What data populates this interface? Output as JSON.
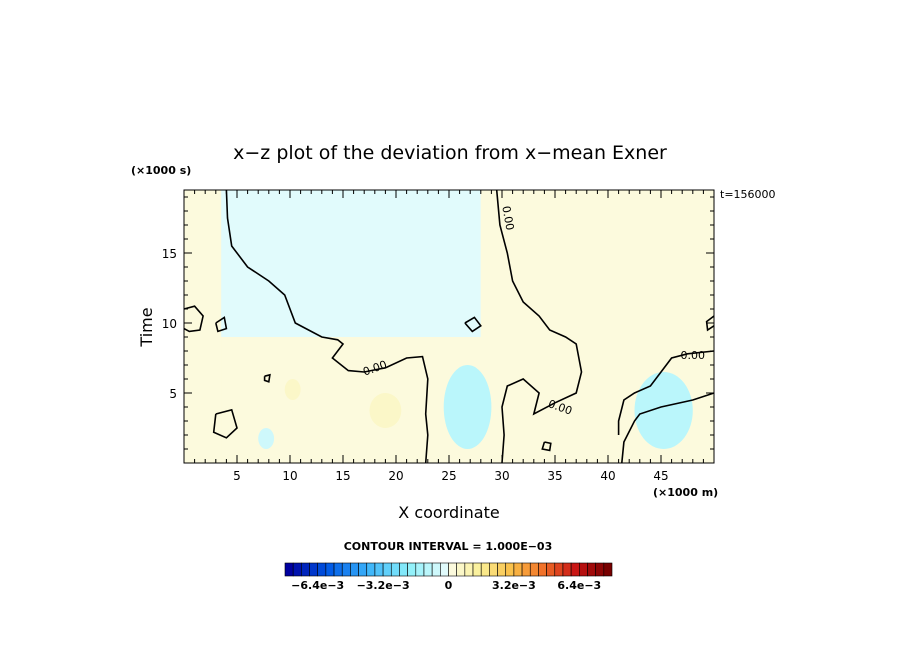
{
  "chart_data": {
    "type": "heatmap",
    "title": "x−z plot of the deviation from x−mean Exner",
    "xlabel": "X coordinate",
    "ylabel": "Time",
    "x_unit": "(×1000 m)",
    "y_unit": "(×1000 s)",
    "time_label": "t=156000",
    "xlim": [
      0,
      50
    ],
    "ylim": [
      0,
      19.5
    ],
    "x_ticks": [
      5,
      10,
      15,
      20,
      25,
      30,
      35,
      40,
      45
    ],
    "y_ticks": [
      5,
      10,
      15
    ],
    "contour_level_labels": [
      "0.00",
      "0.00",
      "0.00",
      "0.00"
    ],
    "contour_interval_text": "CONTOUR INTERVAL = 1.000E−03",
    "colorbar": {
      "min": -0.008,
      "max": 0.008,
      "tick_values": [
        -0.0064,
        -0.0032,
        0,
        0.0032,
        0.0064
      ],
      "tick_labels": [
        "−6.4e−3",
        "−3.2e−3",
        "0",
        "3.2e−3",
        "6.4e−3"
      ]
    },
    "regions": [
      {
        "sign": "negative",
        "x_range": [
          3.5,
          28
        ],
        "y_range": [
          9,
          19.5
        ],
        "level": -0.0002
      },
      {
        "sign": "negative",
        "x_range": [
          24.5,
          29
        ],
        "y_range": [
          1,
          7
        ],
        "level": -0.0012
      },
      {
        "sign": "negative",
        "x_range": [
          42.5,
          48
        ],
        "y_range": [
          1,
          6.5
        ],
        "level": -0.0012
      },
      {
        "sign": "negative",
        "x_range": [
          7,
          8.5
        ],
        "y_range": [
          1,
          2.5
        ],
        "level": -0.0006
      },
      {
        "sign": "positive",
        "x_range": [
          0,
          3.5
        ],
        "y_range": [
          0,
          19.5
        ],
        "level": 0.0002
      },
      {
        "sign": "positive",
        "x_range": [
          28,
          50
        ],
        "y_range": [
          9,
          19.5
        ],
        "level": 0.0002
      },
      {
        "sign": "positive",
        "x_range": [
          17.5,
          20.5
        ],
        "y_range": [
          2.5,
          5
        ],
        "level": 0.0006
      },
      {
        "sign": "positive",
        "x_range": [
          9.5,
          11
        ],
        "y_range": [
          4.5,
          6
        ],
        "level": 0.0006
      }
    ],
    "contours": [
      {
        "name": "zero-contour-left",
        "points": [
          [
            4,
            19.5
          ],
          [
            4.1,
            17.5
          ],
          [
            4.5,
            15.5
          ],
          [
            6,
            14
          ],
          [
            8,
            13
          ],
          [
            9.5,
            12
          ],
          [
            10.5,
            10
          ],
          [
            13,
            9
          ],
          [
            14.5,
            8.8
          ],
          [
            15,
            8.5
          ],
          [
            14,
            7.5
          ],
          [
            15.5,
            6.6
          ],
          [
            17,
            6.5
          ],
          [
            19,
            6.8
          ],
          [
            21,
            7.5
          ],
          [
            22.5,
            7.6
          ],
          [
            23,
            6
          ],
          [
            22.8,
            3.5
          ],
          [
            23,
            2
          ],
          [
            22.8,
            0
          ]
        ]
      },
      {
        "name": "zero-contour-middle",
        "points": [
          [
            29.5,
            19.5
          ],
          [
            29.8,
            17
          ],
          [
            30.5,
            15
          ],
          [
            31,
            13
          ],
          [
            32,
            11.5
          ],
          [
            33.5,
            10.5
          ],
          [
            34.5,
            9.5
          ],
          [
            36,
            9
          ],
          [
            37,
            8.5
          ],
          [
            37.5,
            6.5
          ],
          [
            37,
            5
          ],
          [
            35,
            4.3
          ],
          [
            33,
            3.5
          ],
          [
            33.5,
            5
          ],
          [
            32,
            6
          ],
          [
            30.5,
            5.5
          ],
          [
            30,
            4
          ],
          [
            30.2,
            2
          ],
          [
            30,
            0
          ]
        ]
      },
      {
        "name": "zero-contour-right",
        "points": [
          [
            50,
            5
          ],
          [
            48,
            4.5
          ],
          [
            45,
            4
          ],
          [
            43,
            3.5
          ],
          [
            42.5,
            3
          ],
          [
            41.5,
            1.5
          ],
          [
            41.3,
            0
          ]
        ]
      },
      {
        "name": "zero-contour-right-upper",
        "points": [
          [
            50,
            8
          ],
          [
            47.5,
            7.8
          ],
          [
            46,
            7.5
          ],
          [
            45,
            6.5
          ],
          [
            44,
            5.5
          ],
          [
            42.5,
            5
          ],
          [
            41.5,
            4.5
          ],
          [
            41,
            3
          ],
          [
            41,
            2
          ]
        ]
      },
      {
        "name": "closed-contour-a",
        "points": [
          [
            3,
            3.5
          ],
          [
            4.5,
            3.8
          ],
          [
            5,
            2.5
          ],
          [
            4,
            1.8
          ],
          [
            2.8,
            2.2
          ],
          [
            3,
            3.5
          ]
        ]
      },
      {
        "name": "closed-contour-b",
        "points": [
          [
            3,
            10
          ],
          [
            3.8,
            10.4
          ],
          [
            4,
            9.6
          ],
          [
            3.2,
            9.4
          ],
          [
            3,
            10
          ]
        ]
      },
      {
        "name": "closed-contour-c",
        "points": [
          [
            26.5,
            10
          ],
          [
            27.4,
            10.4
          ],
          [
            28,
            9.8
          ],
          [
            27.2,
            9.4
          ],
          [
            26.5,
            10
          ]
        ]
      },
      {
        "name": "closed-contour-d",
        "points": [
          [
            34,
            1.5
          ],
          [
            34.6,
            1.4
          ],
          [
            34.5,
            0.9
          ],
          [
            33.8,
            1
          ],
          [
            34,
            1.5
          ]
        ]
      },
      {
        "name": "closed-contour-e",
        "points": [
          [
            7.6,
            6.2
          ],
          [
            8.1,
            6.3
          ],
          [
            8.0,
            5.8
          ],
          [
            7.6,
            5.9
          ],
          [
            7.6,
            6.2
          ]
        ]
      },
      {
        "name": "edge-contour-left",
        "points": [
          [
            0,
            11
          ],
          [
            1,
            11.2
          ],
          [
            1.8,
            10.5
          ],
          [
            1.5,
            9.5
          ],
          [
            0.5,
            9.4
          ],
          [
            0,
            9.6
          ]
        ]
      },
      {
        "name": "edge-contour-right",
        "points": [
          [
            50,
            10.5
          ],
          [
            49.3,
            10.1
          ],
          [
            49.4,
            9.5
          ],
          [
            50,
            9.8
          ]
        ]
      }
    ],
    "contour_label_positions": [
      {
        "x": 30.6,
        "y": 17.5,
        "angle": 80
      },
      {
        "x": 18,
        "y": 6.8,
        "angle": -20
      },
      {
        "x": 35.5,
        "y": 4,
        "angle": 20
      },
      {
        "x": 48,
        "y": 7.7,
        "angle": 0
      }
    ]
  }
}
